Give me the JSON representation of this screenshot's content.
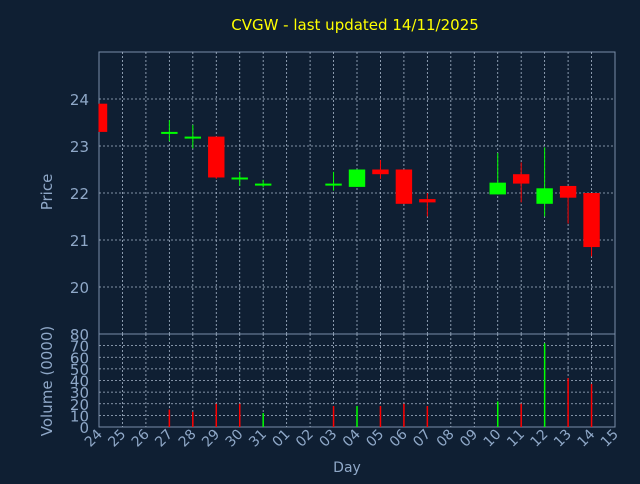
{
  "title": "CVGW - last updated 14/11/2025",
  "colors": {
    "background": "#0f1f33",
    "title": "#ffff00",
    "axis_text": "#8fa8c8",
    "frame": "#7a8ea8",
    "grid": "#a9b8cc",
    "up": "#00ff00",
    "down": "#ff0000"
  },
  "chart_data": [
    {
      "type": "candlestick",
      "ylabel": "Price",
      "ylim": [
        19,
        25
      ],
      "yticks": [
        20,
        21,
        22,
        23,
        24
      ],
      "grid": true,
      "categories": [
        "24",
        "25",
        "26",
        "27",
        "28",
        "29",
        "30",
        "31",
        "01",
        "02",
        "03",
        "04",
        "05",
        "06",
        "07",
        "08",
        "09",
        "10",
        "11",
        "12",
        "13",
        "14",
        "15"
      ],
      "candles": [
        {
          "x": "24",
          "open": 23.9,
          "close": 23.3,
          "high": 23.9,
          "low": 23.3
        },
        {
          "x": "27",
          "open": 23.3,
          "close": 23.3,
          "high": 23.55,
          "low": 23.1
        },
        {
          "x": "28",
          "open": 23.2,
          "close": 23.2,
          "high": 23.45,
          "low": 22.95
        },
        {
          "x": "29",
          "open": 23.2,
          "close": 22.33,
          "high": 23.2,
          "low": 22.3
        },
        {
          "x": "30",
          "open": 22.33,
          "close": 22.33,
          "high": 22.45,
          "low": 22.15
        },
        {
          "x": "31",
          "open": 22.18,
          "close": 22.2,
          "high": 22.28,
          "low": 22.12
        },
        {
          "x": "03",
          "open": 22.2,
          "close": 22.2,
          "high": 22.45,
          "low": 22.05
        },
        {
          "x": "04",
          "open": 22.13,
          "close": 22.5,
          "high": 22.5,
          "low": 22.13
        },
        {
          "x": "05",
          "open": 22.5,
          "close": 22.4,
          "high": 22.7,
          "low": 22.3
        },
        {
          "x": "06",
          "open": 22.5,
          "close": 21.77,
          "high": 22.5,
          "low": 21.77
        },
        {
          "x": "07",
          "open": 21.87,
          "close": 21.8,
          "high": 22.0,
          "low": 21.5
        },
        {
          "x": "10",
          "open": 21.97,
          "close": 22.22,
          "high": 22.85,
          "low": 21.97
        },
        {
          "x": "11",
          "open": 22.4,
          "close": 22.2,
          "high": 22.65,
          "low": 21.8
        },
        {
          "x": "12",
          "open": 21.77,
          "close": 22.1,
          "high": 22.97,
          "low": 21.5
        },
        {
          "x": "13",
          "open": 22.15,
          "close": 21.9,
          "high": 22.15,
          "low": 21.35
        },
        {
          "x": "14",
          "open": 22.0,
          "close": 20.85,
          "high": 22.0,
          "low": 20.65
        }
      ]
    },
    {
      "type": "bar",
      "ylabel": "Volume (0000)",
      "ylim": [
        0,
        80
      ],
      "yticks": [
        0,
        10,
        20,
        30,
        40,
        50,
        60,
        70,
        80
      ],
      "grid": true,
      "xlabel": "Day",
      "bars": [
        {
          "x": "27",
          "value": 15,
          "direction": "down"
        },
        {
          "x": "28",
          "value": 13,
          "direction": "down"
        },
        {
          "x": "29",
          "value": 20,
          "direction": "down"
        },
        {
          "x": "30",
          "value": 20,
          "direction": "down"
        },
        {
          "x": "31",
          "value": 12,
          "direction": "up"
        },
        {
          "x": "03",
          "value": 18,
          "direction": "down"
        },
        {
          "x": "04",
          "value": 18,
          "direction": "up"
        },
        {
          "x": "05",
          "value": 18,
          "direction": "down"
        },
        {
          "x": "06",
          "value": 20,
          "direction": "down"
        },
        {
          "x": "07",
          "value": 18,
          "direction": "down"
        },
        {
          "x": "10",
          "value": 22,
          "direction": "up"
        },
        {
          "x": "11",
          "value": 20,
          "direction": "down"
        },
        {
          "x": "12",
          "value": 72,
          "direction": "up"
        },
        {
          "x": "13",
          "value": 42,
          "direction": "down"
        },
        {
          "x": "14",
          "value": 37,
          "direction": "down"
        }
      ]
    }
  ]
}
